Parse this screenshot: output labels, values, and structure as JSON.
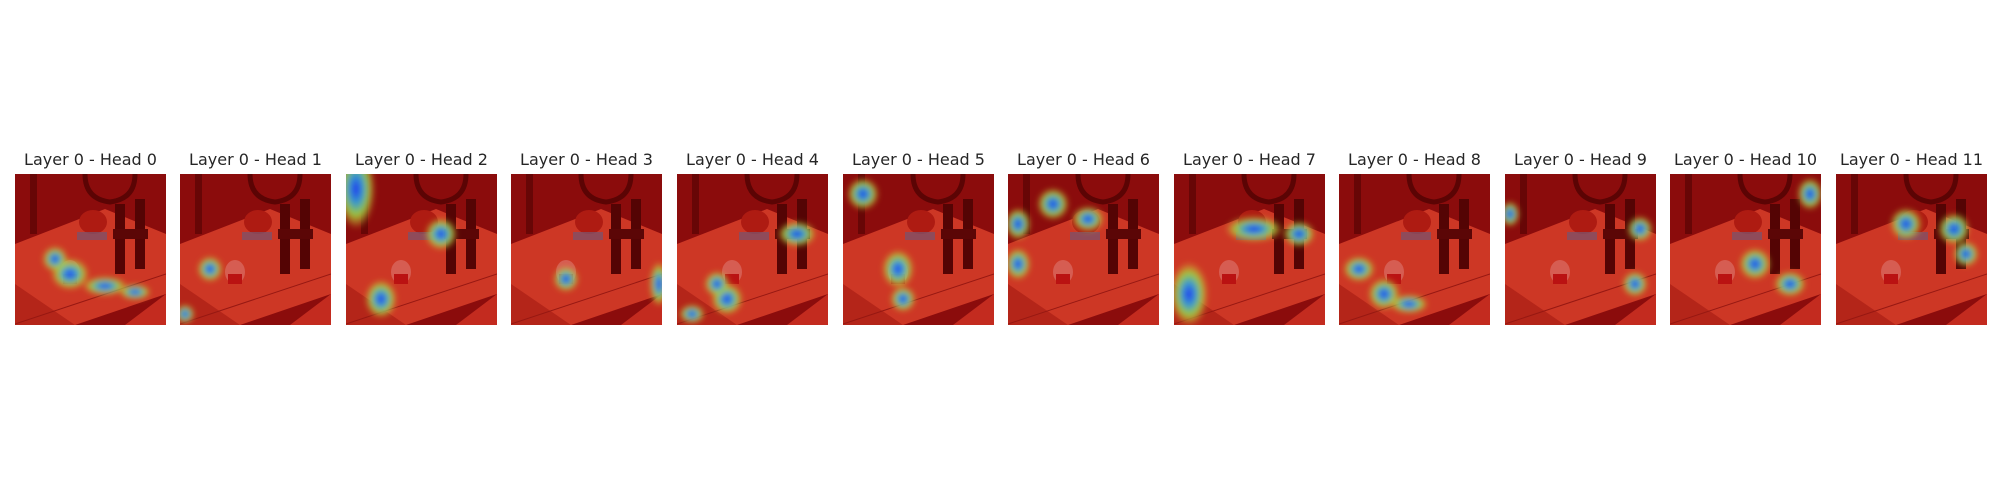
{
  "panels": [
    {
      "title": "Layer 0 - Head 0"
    },
    {
      "title": "Layer 0 - Head 1"
    },
    {
      "title": "Layer 0 - Head 2"
    },
    {
      "title": "Layer 0 - Head 3"
    },
    {
      "title": "Layer 0 - Head 4"
    },
    {
      "title": "Layer 0 - Head 5"
    },
    {
      "title": "Layer 0 - Head 6"
    },
    {
      "title": "Layer 0 - Head 7"
    },
    {
      "title": "Layer 0 - Head 8"
    },
    {
      "title": "Layer 0 - Head 9"
    },
    {
      "title": "Layer 0 - Head 10"
    },
    {
      "title": "Layer 0 - Head 11"
    }
  ]
}
